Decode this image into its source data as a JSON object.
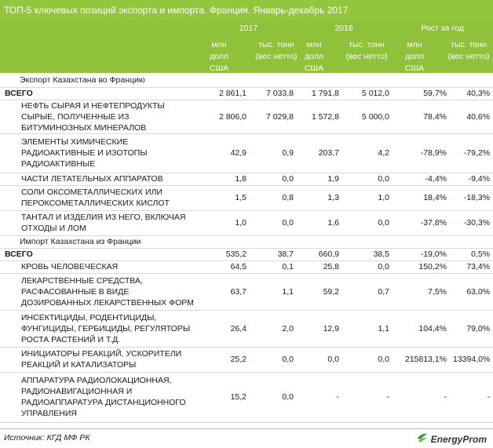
{
  "title": "ТОП-5 ключевых позиций экспорта и импорта. Франция. Январь-декабрь 2017",
  "colors": {
    "accent": "#8fc23a",
    "title_bg": "#92c63c",
    "brand_green": "#3a9a3a"
  },
  "header": {
    "year_2017": "2017",
    "year_2016": "2016",
    "growth": "Рост за год",
    "col_mln": "млн долл США",
    "col_tons": "тыс. тонн (вес нетто)"
  },
  "sections": [
    {
      "label": "Экспорт Казахстана во Францию",
      "rows": [
        {
          "name": "ВСЕГО",
          "v2017_usd": "2 861,1",
          "v2017_t": "7 033,8",
          "v2016_usd": "1 791,8",
          "v2016_t": "5 012,0",
          "g_usd": "59,7%",
          "g_t": "40,3%",
          "total": true
        },
        {
          "name": "НЕФТЬ СЫРАЯ И НЕФТЕПРОДУКТЫ СЫРЫЕ, ПОЛУЧЕННЫЕ ИЗ БИТУМИНОЗНЫХ МИНЕРАЛОВ",
          "v2017_usd": "2 806,0",
          "v2017_t": "7 029,8",
          "v2016_usd": "1 572,8",
          "v2016_t": "5 000,0",
          "g_usd": "78,4%",
          "g_t": "40,6%"
        },
        {
          "name": "ЭЛЕМЕНТЫ ХИМИЧЕСКИЕ РАДИОАКТИВНЫЕ И ИЗОТОПЫ РАДИОАКТИВНЫЕ",
          "v2017_usd": "42,9",
          "v2017_t": "0,9",
          "v2016_usd": "203,7",
          "v2016_t": "4,2",
          "g_usd": "-78,9%",
          "g_t": "-79,2%"
        },
        {
          "name": "ЧАСТИ ЛЕТАТЕЛЬНЫХ АППАРАТОВ",
          "v2017_usd": "1,8",
          "v2017_t": "0,0",
          "v2016_usd": "1,9",
          "v2016_t": "0,0",
          "g_usd": "-4,4%",
          "g_t": "-9,4%"
        },
        {
          "name": "СОЛИ ОКСОМЕТАЛЛИЧЕСКИХ ИЛИ ПЕРОКСОМЕТАЛЛИЧЕСКИХ КИСЛОТ",
          "v2017_usd": "1,5",
          "v2017_t": "0,8",
          "v2016_usd": "1,3",
          "v2016_t": "1,0",
          "g_usd": "18,4%",
          "g_t": "-18,3%"
        },
        {
          "name": "ТАНТАЛ И ИЗДЕЛИЯ ИЗ НЕГО, ВКЛЮЧАЯ ОТХОДЫ И ЛОМ",
          "v2017_usd": "1,0",
          "v2017_t": "0,0",
          "v2016_usd": "1,6",
          "v2016_t": "0,0",
          "g_usd": "-37,8%",
          "g_t": "-30,3%"
        }
      ]
    },
    {
      "label": "Импорт Казахстана из Франции",
      "rows": [
        {
          "name": "ВСЕГО",
          "v2017_usd": "535,2",
          "v2017_t": "38,7",
          "v2016_usd": "660,9",
          "v2016_t": "38,5",
          "g_usd": "-19,0%",
          "g_t": "0,5%",
          "total": true
        },
        {
          "name": "КРОВЬ ЧЕЛОВЕЧЕСКАЯ",
          "v2017_usd": "64,5",
          "v2017_t": "0,1",
          "v2016_usd": "25,8",
          "v2016_t": "0,0",
          "g_usd": "150,2%",
          "g_t": "73,4%"
        },
        {
          "name": "ЛЕКАРСТВЕННЫЕ СРЕДСТВА, РАСФАСОВАННЫЕ В ВИДЕ ДОЗИРОВАННЫХ ЛЕКАРСТВЕННЫХ ФОРМ",
          "v2017_usd": "63,7",
          "v2017_t": "1,1",
          "v2016_usd": "59,2",
          "v2016_t": "0,7",
          "g_usd": "7,5%",
          "g_t": "63,0%"
        },
        {
          "name": "ИНСЕКТИЦИДЫ, РОДЕНТИЦИДЫ, ФУНГИЦИДЫ, ГЕРБИЦИДЫ, РЕГУЛЯТОРЫ РОСТА РАСТЕНИЙ И Т.Д.",
          "v2017_usd": "26,4",
          "v2017_t": "2,0",
          "v2016_usd": "12,9",
          "v2016_t": "1,1",
          "g_usd": "104,4%",
          "g_t": "79,0%"
        },
        {
          "name": "ИНИЦИАТОРЫ РЕАКЦИЙ, УСКОРИТЕЛИ РЕАКЦИЙ И КАТАЛИЗАТОРЫ",
          "v2017_usd": "25,2",
          "v2017_t": "0,0",
          "v2016_usd": "0,0",
          "v2016_t": "0,0",
          "g_usd": "215813,1%",
          "g_t": "13394,0%"
        },
        {
          "name": "АППАРАТУРА РАДИОЛОКАЦИОННАЯ, РАДИОНАВИГАЦИОННАЯ И РАДИОАППАРАТУРА ДИСТАНЦИОННОГО УПРАВЛЕНИЯ",
          "v2017_usd": "15,2",
          "v2017_t": "0,0",
          "v2016_usd": "-",
          "v2016_t": "-",
          "g_usd": "-",
          "g_t": "-"
        }
      ]
    }
  ],
  "footer": {
    "source": "Источник: КГД МФ РК",
    "brand": "EnergyProm",
    "brand_icon": "energyprom-logo"
  }
}
